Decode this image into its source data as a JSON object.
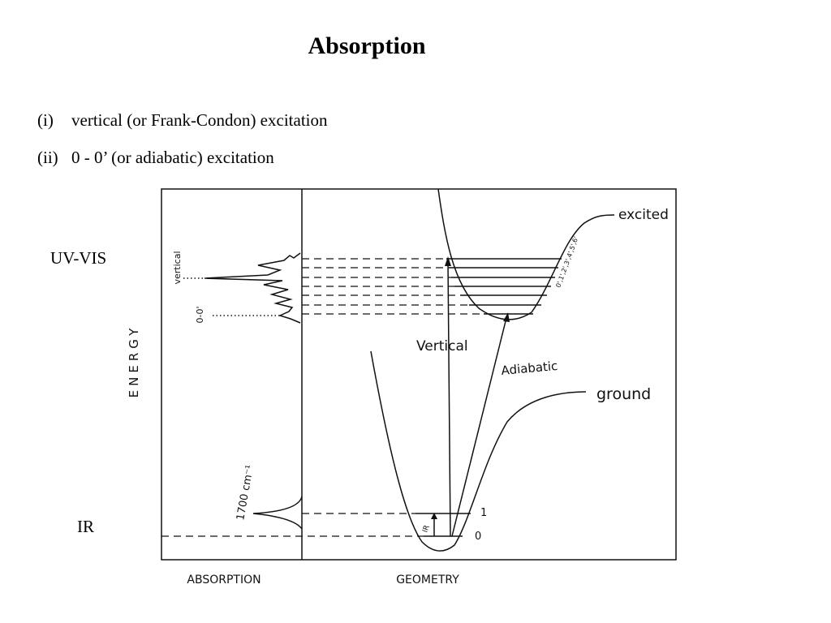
{
  "header": {
    "title": "Absorption"
  },
  "list": [
    {
      "marker": "(i)",
      "text": "vertical (or Frank-Condon) excitation"
    },
    {
      "marker": "(ii)",
      "text": "0 - 0’ (or adiabatic) excitation"
    }
  ],
  "side_labels": {
    "uv_vis": "UV-VIS",
    "ir": "IR"
  },
  "diagram": {
    "y_axis": "ENERGY",
    "x_axis_left": "ABSORPTION",
    "x_axis_right": "GEOMETRY",
    "excited": "excited",
    "ground": "ground",
    "vertical_arrow": "Vertical",
    "adiabatic_arrow": "Adiabatic",
    "spectrum_vertical": "vertical",
    "spectrum_00": "0-0'",
    "ir_frequency": "1700 cm⁻¹",
    "ir_arrow": "IR",
    "level_1": "1",
    "level_0": "0",
    "excited_levels": "0',1',2',3',4',5',6'"
  }
}
